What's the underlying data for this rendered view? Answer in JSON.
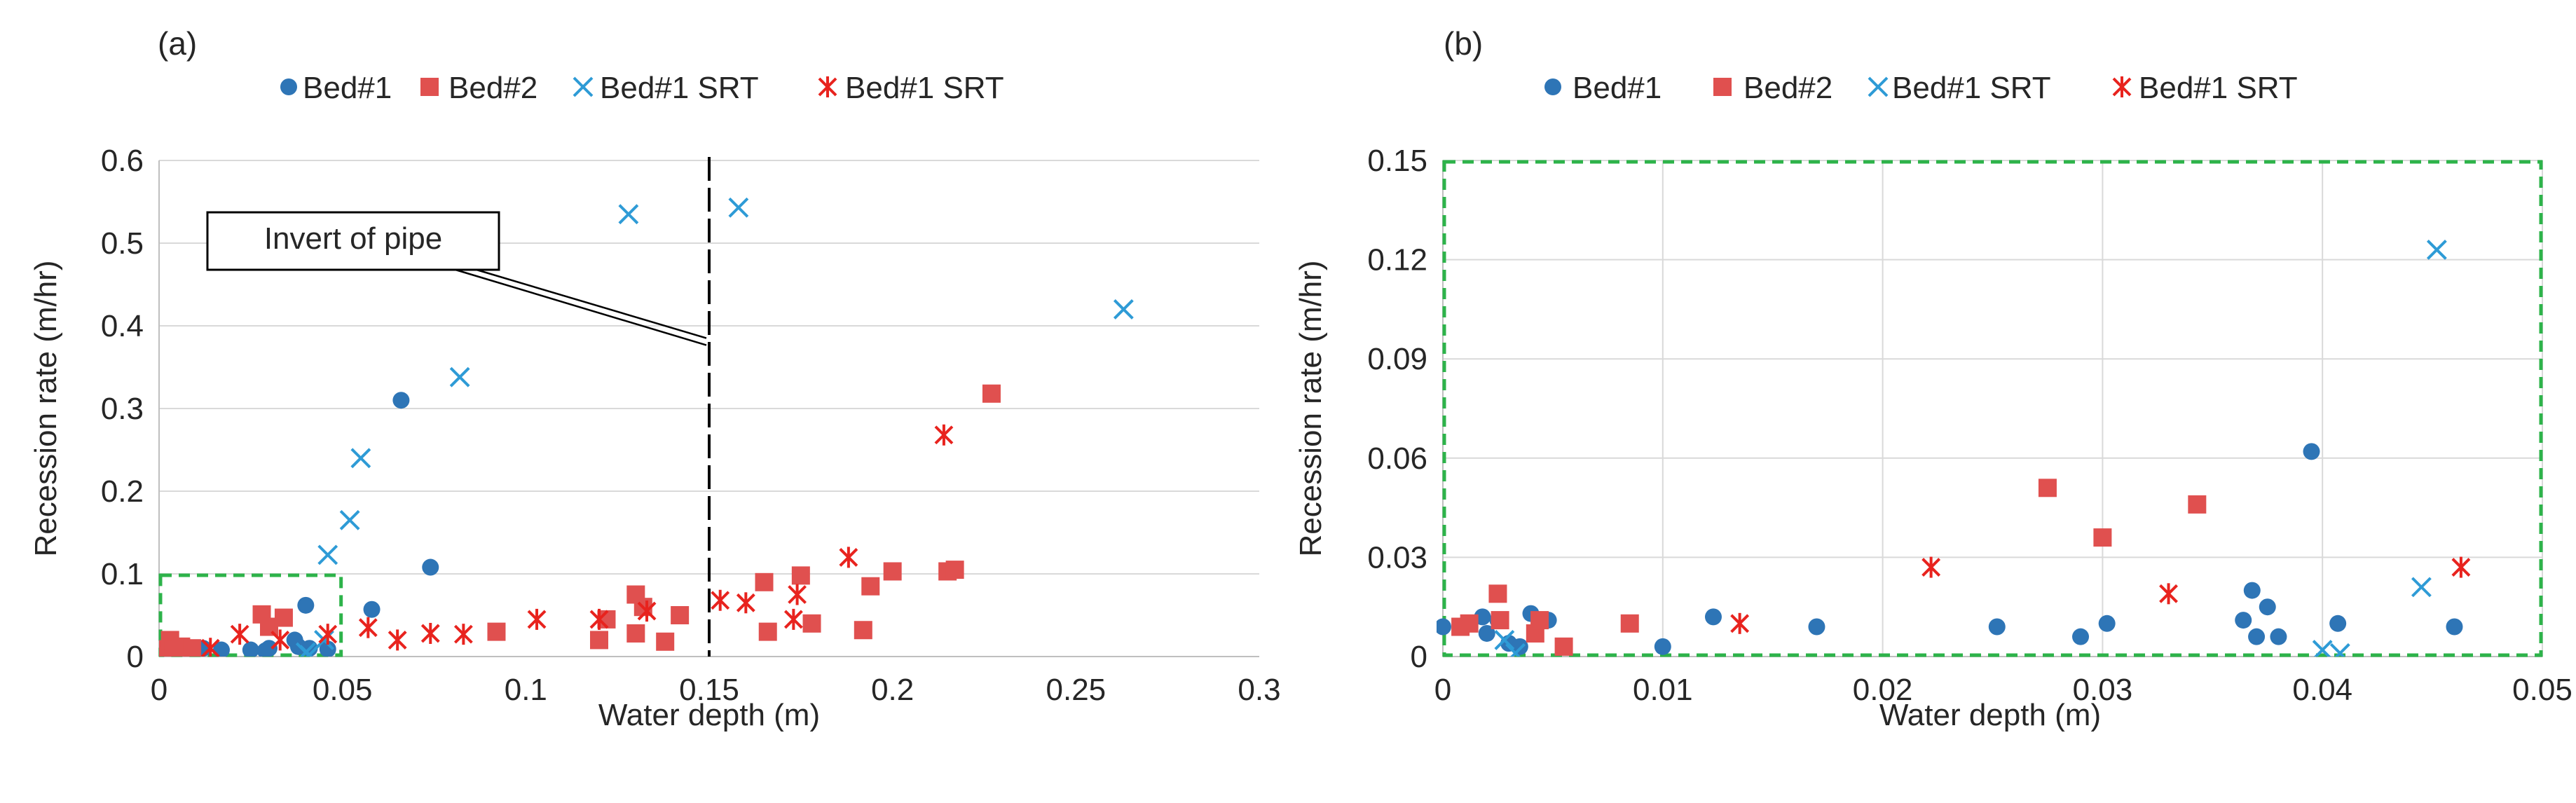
{
  "colors": {
    "bed1": "#2E75B6",
    "bed2": "#E0504F",
    "bed1_srt_x": "#2E9BD6",
    "bed1_srt_star": "#E8231E",
    "highlight_box": "#2DB34A",
    "grid": "#D9D9D9",
    "axis": "#BFBFBF",
    "invert_line": "#000000"
  },
  "chart_data": [
    {
      "type": "scatter",
      "panel_label": "(a)",
      "xlabel": "Water depth (m)",
      "ylabel": "Recession rate (m/hr)",
      "xlim": [
        0,
        0.3
      ],
      "ylim": [
        0,
        0.6
      ],
      "xticks": [
        "0",
        "0.05",
        "0.1",
        "0.15",
        "0.2",
        "0.25",
        "0.3"
      ],
      "yticks": [
        "0",
        "0.1",
        "0.2",
        "0.3",
        "0.4",
        "0.5",
        "0.6"
      ],
      "legend": [
        "Bed#1",
        "Bed#2",
        "Bed#1 SRT",
        "Bed#1 SRT"
      ],
      "grid": "horizontal",
      "annotation": {
        "text": "Invert of pipe",
        "x": 0.15,
        "y": 0.38
      },
      "vertical_line_x": 0.15,
      "zoom_box": {
        "x": [
          0,
          0.05
        ],
        "y": [
          0,
          0.1
        ]
      },
      "series": [
        {
          "name": "Bed#1",
          "marker": "circle",
          "color_key": "bed1",
          "points": [
            [
              0.0,
              0.01
            ],
            [
              0.002,
              0.008
            ],
            [
              0.005,
              0.012
            ],
            [
              0.008,
              0.01
            ],
            [
              0.012,
              0.01
            ],
            [
              0.017,
              0.008
            ],
            [
              0.025,
              0.008
            ],
            [
              0.029,
              0.007
            ],
            [
              0.03,
              0.01
            ],
            [
              0.037,
              0.02
            ],
            [
              0.038,
              0.012
            ],
            [
              0.04,
              0.062
            ],
            [
              0.041,
              0.01
            ],
            [
              0.046,
              0.009
            ],
            [
              0.058,
              0.057
            ],
            [
              0.066,
              0.31
            ],
            [
              0.074,
              0.108
            ]
          ]
        },
        {
          "name": "Bed#2",
          "marker": "square",
          "color_key": "bed2",
          "points": [
            [
              0.001,
              0.009
            ],
            [
              0.003,
              0.02
            ],
            [
              0.004,
              0.008
            ],
            [
              0.006,
              0.012
            ],
            [
              0.009,
              0.01
            ],
            [
              0.028,
              0.051
            ],
            [
              0.03,
              0.036
            ],
            [
              0.034,
              0.047
            ],
            [
              0.092,
              0.03
            ],
            [
              0.12,
              0.02
            ],
            [
              0.122,
              0.045
            ],
            [
              0.13,
              0.075
            ],
            [
              0.13,
              0.028
            ],
            [
              0.132,
              0.06
            ],
            [
              0.138,
              0.018
            ],
            [
              0.142,
              0.05
            ],
            [
              0.165,
              0.09
            ],
            [
              0.166,
              0.03
            ],
            [
              0.175,
              0.098
            ],
            [
              0.178,
              0.04
            ],
            [
              0.192,
              0.032
            ],
            [
              0.194,
              0.085
            ],
            [
              0.2,
              0.103
            ],
            [
              0.215,
              0.103
            ],
            [
              0.217,
              0.105
            ],
            [
              0.227,
              0.318
            ]
          ]
        },
        {
          "name": "Bed#1 SRT",
          "marker": "x",
          "color_key": "bed1_srt_x",
          "points": [
            [
              0.04,
              0.005
            ],
            [
              0.041,
              0.002
            ],
            [
              0.045,
              0.02
            ],
            [
              0.046,
              0.123
            ],
            [
              0.052,
              0.165
            ],
            [
              0.055,
              0.24
            ],
            [
              0.082,
              0.338
            ],
            [
              0.128,
              0.535
            ],
            [
              0.158,
              0.543
            ],
            [
              0.263,
              0.42
            ]
          ]
        },
        {
          "name": "Bed#1 SRT",
          "marker": "star",
          "color_key": "bed1_srt_star",
          "points": [
            [
              0.014,
              0.01
            ],
            [
              0.022,
              0.027
            ],
            [
              0.033,
              0.02
            ],
            [
              0.046,
              0.027
            ],
            [
              0.057,
              0.035
            ],
            [
              0.065,
              0.02
            ],
            [
              0.074,
              0.028
            ],
            [
              0.083,
              0.027
            ],
            [
              0.103,
              0.045
            ],
            [
              0.12,
              0.045
            ],
            [
              0.133,
              0.055
            ],
            [
              0.153,
              0.068
            ],
            [
              0.16,
              0.065
            ],
            [
              0.173,
              0.045
            ],
            [
              0.174,
              0.075
            ],
            [
              0.188,
              0.12
            ],
            [
              0.214,
              0.268
            ]
          ]
        }
      ]
    },
    {
      "type": "scatter",
      "panel_label": "(b)",
      "xlabel": "Water depth (m)",
      "ylabel": "Recession rate (m/hr)",
      "xlim": [
        0,
        0.05
      ],
      "ylim": [
        0,
        0.15
      ],
      "xticks": [
        "0",
        "0.01",
        "0.02",
        "0.03",
        "0.04",
        "0.05"
      ],
      "yticks": [
        "0",
        "0.03",
        "0.06",
        "0.09",
        "0.12",
        "0.15"
      ],
      "legend": [
        "Bed#1",
        "Bed#2",
        "Bed#1 SRT",
        "Bed#1 SRT"
      ],
      "grid": "both",
      "zoom_box": {
        "x": [
          0,
          0.05
        ],
        "y": [
          0,
          0.15
        ]
      },
      "series": [
        {
          "name": "Bed#1",
          "marker": "circle",
          "color_key": "bed1",
          "points": [
            [
              0.0,
              0.009
            ],
            [
              0.0018,
              0.012
            ],
            [
              0.002,
              0.007
            ],
            [
              0.0025,
              0.011
            ],
            [
              0.003,
              0.004
            ],
            [
              0.0035,
              0.003
            ],
            [
              0.004,
              0.013
            ],
            [
              0.0048,
              0.011
            ],
            [
              0.01,
              0.003
            ],
            [
              0.0123,
              0.012
            ],
            [
              0.017,
              0.009
            ],
            [
              0.0252,
              0.009
            ],
            [
              0.029,
              0.006
            ],
            [
              0.0302,
              0.01
            ],
            [
              0.0364,
              0.011
            ],
            [
              0.0368,
              0.02
            ],
            [
              0.037,
              0.006
            ],
            [
              0.0375,
              0.015
            ],
            [
              0.038,
              0.006
            ],
            [
              0.0395,
              0.062
            ],
            [
              0.0407,
              0.01
            ],
            [
              0.046,
              0.009
            ]
          ]
        },
        {
          "name": "Bed#2",
          "marker": "square",
          "color_key": "bed2",
          "points": [
            [
              0.0008,
              0.009
            ],
            [
              0.0012,
              0.01
            ],
            [
              0.0025,
              0.019
            ],
            [
              0.0026,
              0.011
            ],
            [
              0.0042,
              0.007
            ],
            [
              0.0044,
              0.011
            ],
            [
              0.0055,
              0.003
            ],
            [
              0.0085,
              0.01
            ],
            [
              0.0275,
              0.051
            ],
            [
              0.03,
              0.036
            ],
            [
              0.0343,
              0.046
            ]
          ]
        },
        {
          "name": "Bed#1 SRT",
          "marker": "x",
          "color_key": "bed1_srt_x",
          "points": [
            [
              0.0028,
              0.005
            ],
            [
              0.0033,
              0.001
            ],
            [
              0.04,
              0.002
            ],
            [
              0.0408,
              0.001
            ],
            [
              0.0445,
              0.021
            ],
            [
              0.0452,
              0.123
            ]
          ]
        },
        {
          "name": "Bed#1 SRT",
          "marker": "star",
          "color_key": "bed1_srt_star",
          "points": [
            [
              0.0135,
              0.01
            ],
            [
              0.0222,
              0.027
            ],
            [
              0.033,
              0.019
            ],
            [
              0.0463,
              0.027
            ]
          ]
        }
      ]
    }
  ]
}
